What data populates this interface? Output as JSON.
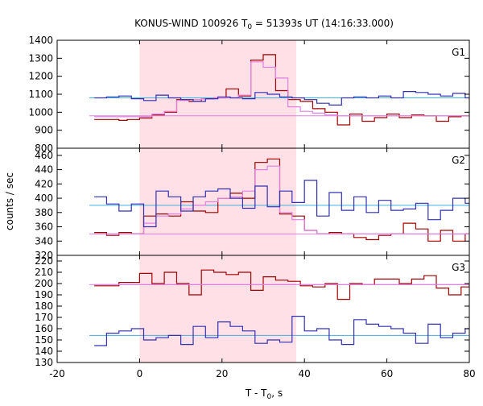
{
  "title_main": "KONUS-WIND 100926 T",
  "title_sub": "0",
  "title_rest": " = 51393s UT (14:16:33.000)",
  "ylabel": "counts / sec",
  "xlabel_main": "T - T",
  "xlabel_sub": "0",
  "xlabel_rest": ", s",
  "colors": {
    "dark_red": "#a00000",
    "dark_blue": "#3030b0",
    "pink": "#e080e0",
    "light_blue": "#40b0e0",
    "shade": "#ffe0e6"
  },
  "chart_data": {
    "type": "line",
    "xlim": [
      -20,
      80
    ],
    "x_ticks": [
      "-20",
      "0",
      "20",
      "40",
      "60",
      "80"
    ],
    "shaded_interval": [
      0,
      38
    ],
    "panels": [
      {
        "label": "G1",
        "ylim": [
          800,
          1400
        ],
        "y_ticks": [
          "800",
          "900",
          "1000",
          "1100",
          "1200",
          "1300",
          "1400"
        ],
        "background_levels": {
          "dark_red": 980,
          "dark_blue": 1080
        },
        "series": [
          {
            "color": "dark_red",
            "steps": [
              [
                -11,
                960
              ],
              [
                -5,
                955
              ],
              [
                -3,
                960
              ],
              [
                0,
                968
              ],
              [
                3,
                985
              ],
              [
                6,
                1000
              ],
              [
                9,
                1070
              ],
              [
                12,
                1060
              ],
              [
                15,
                1075
              ],
              [
                18,
                1080
              ],
              [
                21,
                1130
              ],
              [
                24,
                1090
              ],
              [
                27,
                1290
              ],
              [
                30,
                1320
              ],
              [
                33,
                1120
              ],
              [
                36,
                1070
              ],
              [
                39,
                1060
              ],
              [
                42,
                1020
              ],
              [
                45,
                1000
              ],
              [
                48,
                930
              ],
              [
                51,
                990
              ],
              [
                54,
                950
              ],
              [
                57,
                970
              ],
              [
                60,
                990
              ],
              [
                63,
                970
              ],
              [
                66,
                985
              ],
              [
                69,
                980
              ],
              [
                72,
                950
              ],
              [
                75,
                975
              ],
              [
                78,
                980
              ]
            ],
            "end": 81
          },
          {
            "color": "pink",
            "steps": [
              [
                -11,
                975
              ],
              [
                0,
                975
              ],
              [
                3,
                990
              ],
              [
                6,
                1005
              ],
              [
                9,
                1065
              ],
              [
                12,
                1070
              ],
              [
                15,
                1075
              ],
              [
                18,
                1080
              ],
              [
                21,
                1080
              ],
              [
                24,
                1095
              ],
              [
                27,
                1280
              ],
              [
                30,
                1250
              ],
              [
                33,
                1190
              ],
              [
                36,
                1030
              ],
              [
                39,
                1005
              ],
              [
                42,
                995
              ],
              [
                45,
                985
              ],
              [
                48,
                980
              ]
            ],
            "end": 81
          },
          {
            "color": "dark_blue",
            "steps": [
              [
                -11,
                1080
              ],
              [
                -8,
                1085
              ],
              [
                -5,
                1090
              ],
              [
                -2,
                1075
              ],
              [
                1,
                1065
              ],
              [
                4,
                1095
              ],
              [
                7,
                1080
              ],
              [
                10,
                1070
              ],
              [
                13,
                1060
              ],
              [
                16,
                1075
              ],
              [
                19,
                1085
              ],
              [
                22,
                1080
              ],
              [
                25,
                1075
              ],
              [
                28,
                1110
              ],
              [
                31,
                1100
              ],
              [
                34,
                1085
              ],
              [
                37,
                1080
              ],
              [
                40,
                1070
              ],
              [
                43,
                1050
              ],
              [
                46,
                1040
              ],
              [
                49,
                1080
              ],
              [
                52,
                1085
              ],
              [
                55,
                1080
              ],
              [
                58,
                1090
              ],
              [
                61,
                1080
              ],
              [
                64,
                1115
              ],
              [
                67,
                1110
              ],
              [
                70,
                1100
              ],
              [
                73,
                1090
              ],
              [
                76,
                1105
              ],
              [
                79,
                1080
              ]
            ],
            "end": 81
          }
        ]
      },
      {
        "label": "G2",
        "ylim": [
          320,
          470
        ],
        "y_ticks": [
          "320",
          "340",
          "360",
          "380",
          "400",
          "420",
          "440",
          "460"
        ],
        "background_levels": {
          "dark_red": 350,
          "dark_blue": 390
        },
        "series": [
          {
            "color": "dark_red",
            "steps": [
              [
                -11,
                352
              ],
              [
                -8,
                348
              ],
              [
                -5,
                352
              ],
              [
                -2,
                350
              ],
              [
                1,
                375
              ],
              [
                4,
                378
              ],
              [
                7,
                375
              ],
              [
                10,
                395
              ],
              [
                13,
                382
              ],
              [
                16,
                380
              ],
              [
                19,
                400
              ],
              [
                22,
                407
              ],
              [
                25,
                400
              ],
              [
                28,
                450
              ],
              [
                31,
                455
              ],
              [
                34,
                378
              ],
              [
                37,
                375
              ],
              [
                40,
                355
              ],
              [
                43,
                350
              ],
              [
                46,
                352
              ],
              [
                49,
                350
              ],
              [
                52,
                345
              ],
              [
                55,
                342
              ],
              [
                58,
                348
              ],
              [
                61,
                350
              ],
              [
                64,
                365
              ],
              [
                67,
                357
              ],
              [
                70,
                340
              ],
              [
                73,
                355
              ],
              [
                76,
                340
              ],
              [
                79,
                350
              ]
            ],
            "end": 81
          },
          {
            "color": "pink",
            "steps": [
              [
                -11,
                350
              ],
              [
                1,
                365
              ],
              [
                4,
                375
              ],
              [
                7,
                378
              ],
              [
                10,
                385
              ],
              [
                13,
                390
              ],
              [
                16,
                395
              ],
              [
                19,
                400
              ],
              [
                22,
                402
              ],
              [
                25,
                410
              ],
              [
                28,
                440
              ],
              [
                31,
                445
              ],
              [
                34,
                380
              ],
              [
                37,
                370
              ],
              [
                40,
                355
              ],
              [
                43,
                350
              ]
            ],
            "end": 81
          },
          {
            "color": "dark_blue",
            "steps": [
              [
                -11,
                402
              ],
              [
                -8,
                392
              ],
              [
                -5,
                382
              ],
              [
                -2,
                392
              ],
              [
                1,
                360
              ],
              [
                4,
                410
              ],
              [
                7,
                402
              ],
              [
                10,
                382
              ],
              [
                13,
                402
              ],
              [
                16,
                410
              ],
              [
                19,
                413
              ],
              [
                22,
                400
              ],
              [
                25,
                386
              ],
              [
                28,
                417
              ],
              [
                31,
                388
              ],
              [
                34,
                410
              ],
              [
                37,
                394
              ],
              [
                40,
                425
              ],
              [
                43,
                375
              ],
              [
                46,
                408
              ],
              [
                49,
                383
              ],
              [
                52,
                402
              ],
              [
                55,
                380
              ],
              [
                58,
                397
              ],
              [
                61,
                383
              ],
              [
                64,
                385
              ],
              [
                67,
                393
              ],
              [
                70,
                370
              ],
              [
                73,
                383
              ],
              [
                76,
                400
              ],
              [
                79,
                393
              ]
            ],
            "end": 81
          }
        ]
      },
      {
        "label": "G3",
        "ylim": [
          130,
          225
        ],
        "y_ticks": [
          "130",
          "140",
          "150",
          "160",
          "170",
          "180",
          "190",
          "200",
          "210",
          "220"
        ],
        "background_levels": {
          "dark_red": 199,
          "dark_blue": 154
        },
        "series": [
          {
            "color": "dark_red",
            "steps": [
              [
                -11,
                198
              ],
              [
                -5,
                201
              ],
              [
                0,
                209
              ],
              [
                3,
                200
              ],
              [
                6,
                210
              ],
              [
                9,
                200
              ],
              [
                12,
                190
              ],
              [
                15,
                212
              ],
              [
                18,
                210
              ],
              [
                21,
                208
              ],
              [
                24,
                210
              ],
              [
                27,
                194
              ],
              [
                30,
                206
              ],
              [
                33,
                203
              ],
              [
                36,
                202
              ],
              [
                39,
                198
              ],
              [
                42,
                197
              ],
              [
                45,
                200
              ],
              [
                48,
                186
              ],
              [
                51,
                200
              ],
              [
                54,
                199
              ],
              [
                57,
                204
              ],
              [
                60,
                204
              ],
              [
                63,
                200
              ],
              [
                66,
                204
              ],
              [
                69,
                207
              ],
              [
                72,
                196
              ],
              [
                75,
                190
              ],
              [
                78,
                197
              ],
              [
                80,
                199
              ]
            ],
            "end": 81
          },
          {
            "color": "pink",
            "steps": [
              [
                -11,
                199
              ]
            ],
            "end": 81
          },
          {
            "color": "dark_blue",
            "steps": [
              [
                -11,
                145
              ],
              [
                -8,
                156
              ],
              [
                -5,
                158
              ],
              [
                -2,
                160
              ],
              [
                1,
                150
              ],
              [
                4,
                152
              ],
              [
                7,
                154
              ],
              [
                10,
                146
              ],
              [
                13,
                162
              ],
              [
                16,
                152
              ],
              [
                19,
                166
              ],
              [
                22,
                162
              ],
              [
                25,
                158
              ],
              [
                28,
                147
              ],
              [
                31,
                150
              ],
              [
                34,
                148
              ],
              [
                37,
                171
              ],
              [
                40,
                158
              ],
              [
                43,
                160
              ],
              [
                46,
                150
              ],
              [
                49,
                146
              ],
              [
                52,
                168
              ],
              [
                55,
                164
              ],
              [
                58,
                162
              ],
              [
                61,
                160
              ],
              [
                64,
                156
              ],
              [
                67,
                147
              ],
              [
                70,
                164
              ],
              [
                73,
                152
              ],
              [
                76,
                156
              ],
              [
                79,
                160
              ],
              [
                81,
                145
              ]
            ],
            "end": 83
          }
        ]
      }
    ]
  }
}
